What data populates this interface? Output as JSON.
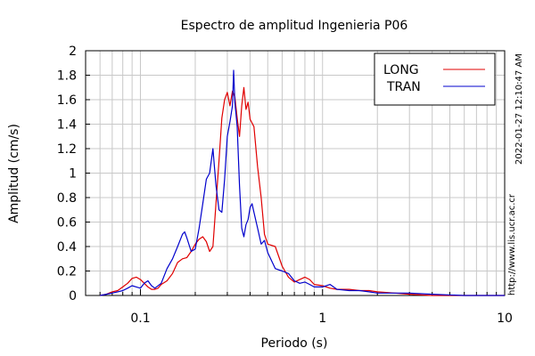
{
  "chart_data": {
    "type": "line",
    "title": "Espectro de amplitud Ingenieria P06",
    "xlabel": "Periodo (s)",
    "ylabel": "Amplitud (cm/s)",
    "x_scale": "log",
    "xlim": [
      0.05,
      10
    ],
    "ylim": [
      0,
      2
    ],
    "x_tick_labels": [
      {
        "value": 0.1,
        "label": "0.1"
      },
      {
        "value": 1,
        "label": "1"
      },
      {
        "value": 10,
        "label": "10"
      }
    ],
    "y_ticks": [
      0,
      0.2,
      0.4,
      0.6,
      0.8,
      1,
      1.2,
      1.4,
      1.6,
      1.8,
      2
    ],
    "y_tick_labels": [
      "0",
      "0.2",
      "0.4",
      "0.6",
      "0.8",
      "1",
      "1.2",
      "1.4",
      "1.6",
      "1.8",
      "2"
    ],
    "grid": true,
    "legend_position": "top-right",
    "series": [
      {
        "name": "LONG",
        "color": "#e00000",
        "points": [
          [
            0.06,
            0.0
          ],
          [
            0.065,
            0.01
          ],
          [
            0.07,
            0.03
          ],
          [
            0.075,
            0.04
          ],
          [
            0.08,
            0.07
          ],
          [
            0.085,
            0.1
          ],
          [
            0.09,
            0.14
          ],
          [
            0.095,
            0.15
          ],
          [
            0.1,
            0.13
          ],
          [
            0.105,
            0.1
          ],
          [
            0.11,
            0.07
          ],
          [
            0.115,
            0.05
          ],
          [
            0.12,
            0.05
          ],
          [
            0.125,
            0.06
          ],
          [
            0.13,
            0.09
          ],
          [
            0.14,
            0.12
          ],
          [
            0.15,
            0.18
          ],
          [
            0.16,
            0.27
          ],
          [
            0.17,
            0.3
          ],
          [
            0.18,
            0.31
          ],
          [
            0.19,
            0.36
          ],
          [
            0.2,
            0.42
          ],
          [
            0.21,
            0.46
          ],
          [
            0.22,
            0.48
          ],
          [
            0.23,
            0.44
          ],
          [
            0.24,
            0.36
          ],
          [
            0.25,
            0.4
          ],
          [
            0.26,
            0.75
          ],
          [
            0.27,
            1.1
          ],
          [
            0.28,
            1.45
          ],
          [
            0.29,
            1.6
          ],
          [
            0.3,
            1.66
          ],
          [
            0.31,
            1.55
          ],
          [
            0.32,
            1.67
          ],
          [
            0.33,
            1.62
          ],
          [
            0.34,
            1.45
          ],
          [
            0.35,
            1.3
          ],
          [
            0.36,
            1.55
          ],
          [
            0.37,
            1.7
          ],
          [
            0.38,
            1.52
          ],
          [
            0.39,
            1.58
          ],
          [
            0.4,
            1.44
          ],
          [
            0.42,
            1.38
          ],
          [
            0.44,
            1.05
          ],
          [
            0.46,
            0.8
          ],
          [
            0.48,
            0.5
          ],
          [
            0.5,
            0.42
          ],
          [
            0.55,
            0.4
          ],
          [
            0.6,
            0.24
          ],
          [
            0.65,
            0.15
          ],
          [
            0.7,
            0.11
          ],
          [
            0.75,
            0.13
          ],
          [
            0.8,
            0.15
          ],
          [
            0.85,
            0.13
          ],
          [
            0.9,
            0.09
          ],
          [
            1.0,
            0.08
          ],
          [
            1.1,
            0.06
          ],
          [
            1.2,
            0.05
          ],
          [
            1.4,
            0.05
          ],
          [
            1.6,
            0.04
          ],
          [
            1.8,
            0.04
          ],
          [
            2.0,
            0.03
          ],
          [
            2.5,
            0.02
          ],
          [
            3.0,
            0.01
          ],
          [
            4.0,
            0.0
          ],
          [
            6.0,
            0.0
          ],
          [
            10,
            0.0
          ]
        ]
      },
      {
        "name": "TRAN",
        "color": "#0000cc",
        "points": [
          [
            0.06,
            0.0
          ],
          [
            0.065,
            0.01
          ],
          [
            0.07,
            0.02
          ],
          [
            0.075,
            0.03
          ],
          [
            0.08,
            0.04
          ],
          [
            0.085,
            0.06
          ],
          [
            0.09,
            0.08
          ],
          [
            0.095,
            0.07
          ],
          [
            0.1,
            0.06
          ],
          [
            0.105,
            0.1
          ],
          [
            0.11,
            0.12
          ],
          [
            0.115,
            0.08
          ],
          [
            0.12,
            0.06
          ],
          [
            0.13,
            0.1
          ],
          [
            0.14,
            0.22
          ],
          [
            0.15,
            0.3
          ],
          [
            0.16,
            0.4
          ],
          [
            0.17,
            0.5
          ],
          [
            0.175,
            0.52
          ],
          [
            0.18,
            0.47
          ],
          [
            0.19,
            0.36
          ],
          [
            0.2,
            0.38
          ],
          [
            0.21,
            0.55
          ],
          [
            0.22,
            0.75
          ],
          [
            0.23,
            0.95
          ],
          [
            0.24,
            1.0
          ],
          [
            0.25,
            1.2
          ],
          [
            0.26,
            0.9
          ],
          [
            0.27,
            0.7
          ],
          [
            0.28,
            0.68
          ],
          [
            0.29,
            0.95
          ],
          [
            0.3,
            1.3
          ],
          [
            0.31,
            1.42
          ],
          [
            0.32,
            1.55
          ],
          [
            0.325,
            1.84
          ],
          [
            0.33,
            1.58
          ],
          [
            0.34,
            1.38
          ],
          [
            0.35,
            0.9
          ],
          [
            0.36,
            0.55
          ],
          [
            0.37,
            0.48
          ],
          [
            0.38,
            0.58
          ],
          [
            0.39,
            0.62
          ],
          [
            0.4,
            0.72
          ],
          [
            0.41,
            0.75
          ],
          [
            0.42,
            0.68
          ],
          [
            0.44,
            0.55
          ],
          [
            0.46,
            0.42
          ],
          [
            0.48,
            0.45
          ],
          [
            0.5,
            0.35
          ],
          [
            0.55,
            0.22
          ],
          [
            0.6,
            0.2
          ],
          [
            0.65,
            0.18
          ],
          [
            0.7,
            0.12
          ],
          [
            0.75,
            0.1
          ],
          [
            0.8,
            0.11
          ],
          [
            0.85,
            0.09
          ],
          [
            0.9,
            0.07
          ],
          [
            1.0,
            0.07
          ],
          [
            1.1,
            0.09
          ],
          [
            1.2,
            0.05
          ],
          [
            1.4,
            0.04
          ],
          [
            1.6,
            0.04
          ],
          [
            1.8,
            0.03
          ],
          [
            2.0,
            0.02
          ],
          [
            2.5,
            0.02
          ],
          [
            3.0,
            0.02
          ],
          [
            4.0,
            0.01
          ],
          [
            6.0,
            0.0
          ],
          [
            10,
            0.0
          ]
        ]
      }
    ]
  },
  "side_annotations": {
    "timestamp": "2022-01-27 12:10:47 AM",
    "url": "http://www.lis.ucr.ac.cr"
  }
}
